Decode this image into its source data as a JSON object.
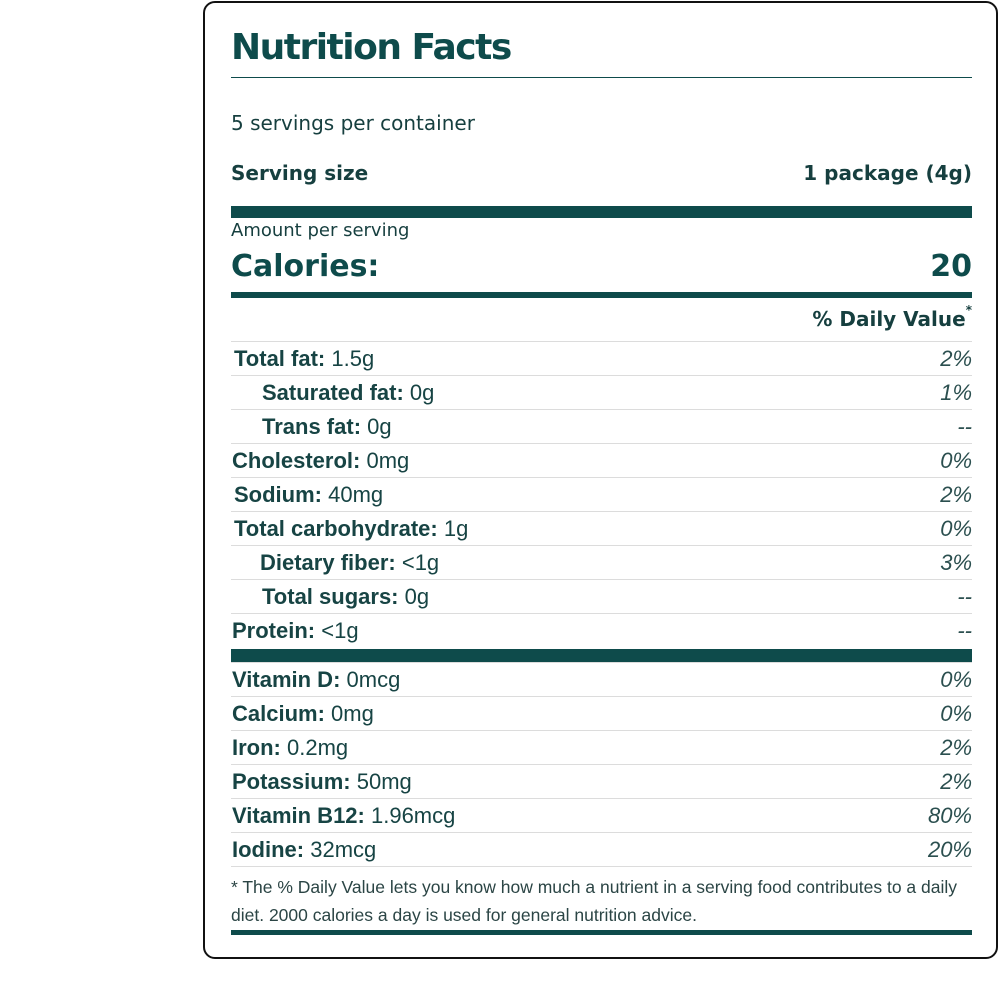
{
  "label": {
    "title": "Nutrition Facts",
    "servings_per_container": "5 servings per container",
    "serving_size_label": "Serving size",
    "serving_size_value": "1 package (4g)",
    "amount_per_serving": "Amount per serving",
    "calories_label": "Calories:",
    "calories_value": "20",
    "daily_value_header": "% Daily Value",
    "daily_value_marker": "*"
  },
  "nutrients": [
    {
      "name": "Total fat:",
      "amount": "1.5g",
      "dv": "2%"
    },
    {
      "name": "Saturated fat:",
      "amount": "0g",
      "dv": "1%"
    },
    {
      "name": "Trans fat:",
      "amount": "0g",
      "dv": "--"
    },
    {
      "name": "Cholesterol:",
      "amount": "0mg",
      "dv": "0%"
    },
    {
      "name": "Sodium:",
      "amount": "40mg",
      "dv": "2%"
    },
    {
      "name": "Total carbohydrate:",
      "amount": "1g",
      "dv": "0%"
    },
    {
      "name": "Dietary fiber:",
      "amount": "<1g",
      "dv": "3%"
    },
    {
      "name": "Total sugars:",
      "amount": "0g",
      "dv": "--"
    },
    {
      "name": "Protein:",
      "amount": "<1g",
      "dv": "--"
    }
  ],
  "vitamins": [
    {
      "name": "Vitamin D:",
      "amount": "0mcg",
      "dv": "0%"
    },
    {
      "name": "Calcium:",
      "amount": "0mg",
      "dv": "0%"
    },
    {
      "name": "Iron:",
      "amount": "0.2mg",
      "dv": "2%"
    },
    {
      "name": "Potassium:",
      "amount": "50mg",
      "dv": "2%"
    },
    {
      "name": "Vitamin B12:",
      "amount": "1.96mcg",
      "dv": "80%"
    },
    {
      "name": "Iodine:",
      "amount": "32mcg",
      "dv": "20%"
    }
  ],
  "footnote": "* The % Daily Value lets you know how much a nutrient in a serving food contributes to a daily diet. 2000 calories a day is used for general nutrition advice.",
  "colors": {
    "primary": "#0e4b4b",
    "text": "#174444",
    "rule": "#dcdcdc"
  }
}
